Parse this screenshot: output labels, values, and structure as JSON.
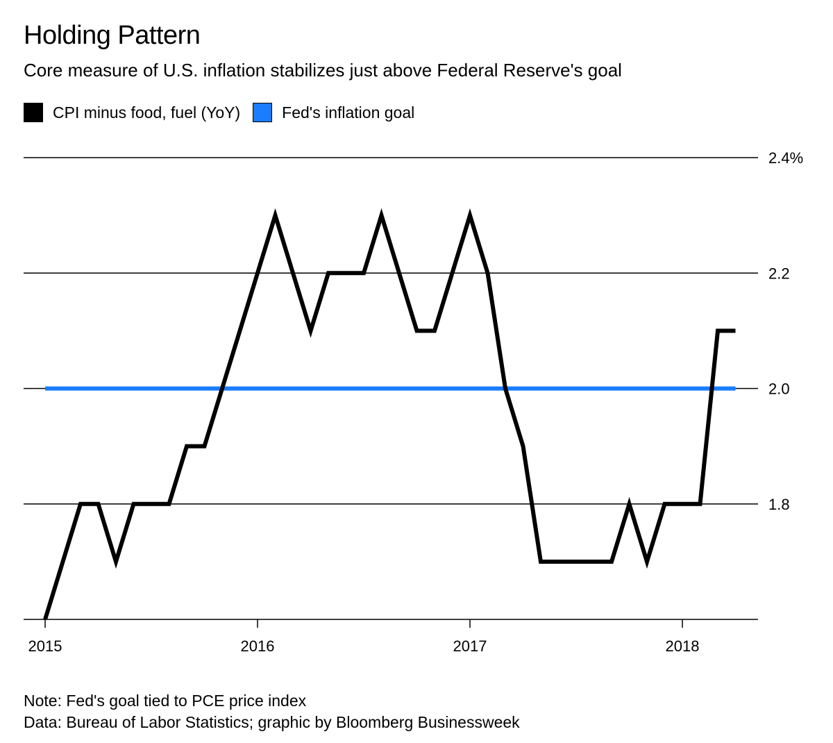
{
  "title": "Holding Pattern",
  "subtitle": "Core measure of U.S. inflation stabilizes just above Federal Reserve's goal",
  "legend": [
    {
      "label": "CPI minus food, fuel (YoY)",
      "color": "#000000"
    },
    {
      "label": "Fed's inflation goal",
      "color": "#1a7dff"
    }
  ],
  "notes": {
    "note": "Note: Fed's goal tied to PCE price index",
    "source": "Data: Bureau of Labor Statistics; graphic by Bloomberg Businessweek"
  },
  "chart_data": {
    "type": "line",
    "title": "Holding Pattern",
    "subtitle": "Core measure of U.S. inflation stabilizes just above Federal Reserve's goal",
    "xlabel": "",
    "ylabel": "",
    "ylim": [
      1.6,
      2.4
    ],
    "xlim": [
      "2015-01",
      "2018-05"
    ],
    "y_ticks": [
      {
        "value": 2.4,
        "label": "2.4%"
      },
      {
        "value": 2.2,
        "label": "2.2"
      },
      {
        "value": 2.0,
        "label": "2.0"
      },
      {
        "value": 1.8,
        "label": "1.8"
      }
    ],
    "x_ticks": [
      {
        "value": "2015-01",
        "label": "2015"
      },
      {
        "value": "2016-01",
        "label": "2016"
      },
      {
        "value": "2017-01",
        "label": "2017"
      },
      {
        "value": "2018-01",
        "label": "2018"
      }
    ],
    "grid": true,
    "legend_position": "top-left",
    "series": [
      {
        "name": "CPI minus food, fuel (YoY)",
        "color": "#000000",
        "x": [
          "2015-01",
          "2015-02",
          "2015-03",
          "2015-04",
          "2015-05",
          "2015-06",
          "2015-07",
          "2015-08",
          "2015-09",
          "2015-10",
          "2015-11",
          "2015-12",
          "2016-01",
          "2016-02",
          "2016-03",
          "2016-04",
          "2016-05",
          "2016-06",
          "2016-07",
          "2016-08",
          "2016-09",
          "2016-10",
          "2016-11",
          "2016-12",
          "2017-01",
          "2017-02",
          "2017-03",
          "2017-04",
          "2017-05",
          "2017-06",
          "2017-07",
          "2017-08",
          "2017-09",
          "2017-10",
          "2017-11",
          "2017-12",
          "2018-01",
          "2018-02",
          "2018-03",
          "2018-04"
        ],
        "values": [
          1.6,
          1.7,
          1.8,
          1.8,
          1.7,
          1.8,
          1.8,
          1.8,
          1.9,
          1.9,
          2.0,
          2.1,
          2.2,
          2.3,
          2.2,
          2.1,
          2.2,
          2.2,
          2.2,
          2.3,
          2.2,
          2.1,
          2.1,
          2.2,
          2.3,
          2.2,
          2.0,
          1.9,
          1.7,
          1.7,
          1.7,
          1.7,
          1.7,
          1.8,
          1.7,
          1.8,
          1.8,
          1.8,
          2.1,
          2.1
        ]
      },
      {
        "name": "Fed's inflation goal",
        "color": "#1a7dff",
        "x": [
          "2015-01",
          "2018-04"
        ],
        "values": [
          2.0,
          2.0
        ]
      }
    ]
  }
}
